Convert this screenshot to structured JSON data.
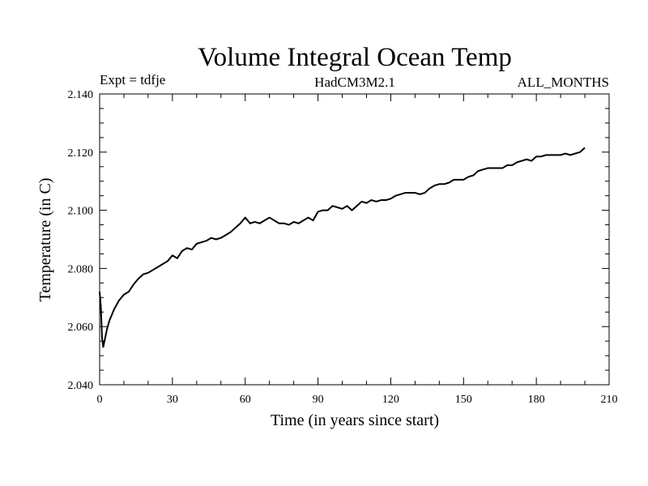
{
  "chart_data": {
    "type": "line",
    "title": "Volume Integral Ocean Temp",
    "subtitle_left": "Expt = tdfje",
    "subtitle_center": "HadCM3M2.1",
    "subtitle_right": "ALL_MONTHS",
    "xlabel": "Time (in years since start)",
    "ylabel": "Temperature (in C)",
    "xlim": [
      0,
      210
    ],
    "ylim": [
      2.04,
      2.14
    ],
    "xticks": [
      0,
      30,
      60,
      90,
      120,
      150,
      180,
      210
    ],
    "yticks": [
      2.04,
      2.06,
      2.08,
      2.1,
      2.12,
      2.14
    ],
    "xtick_labels": [
      "0",
      "30",
      "60",
      "90",
      "120",
      "150",
      "180",
      "210"
    ],
    "ytick_labels": [
      "2.040",
      "2.060",
      "2.080",
      "2.100",
      "2.120",
      "2.140"
    ],
    "grid": false,
    "line_color": "#000000",
    "series": [
      {
        "x": [
          0,
          0.5,
          1,
          1.5,
          2,
          3,
          4,
          5,
          6,
          8,
          10,
          12,
          14,
          16,
          18,
          20,
          22,
          24,
          26,
          28,
          30,
          32,
          34,
          36,
          38,
          40,
          42,
          44,
          46,
          48,
          50,
          52,
          54,
          56,
          58,
          60,
          62,
          64,
          66,
          68,
          70,
          72,
          74,
          76,
          78,
          80,
          82,
          84,
          86,
          88,
          90,
          92,
          94,
          96,
          98,
          100,
          102,
          104,
          106,
          108,
          110,
          112,
          114,
          116,
          118,
          120,
          122,
          124,
          126,
          128,
          130,
          132,
          134,
          136,
          138,
          140,
          142,
          144,
          146,
          148,
          150,
          152,
          154,
          156,
          158,
          160,
          162,
          164,
          166,
          168,
          170,
          172,
          174,
          176,
          178,
          180,
          182,
          184,
          186,
          188,
          190,
          192,
          194,
          196,
          198,
          200
        ],
        "y": [
          2.072,
          2.067,
          2.056,
          2.053,
          2.055,
          2.059,
          2.062,
          2.064,
          2.066,
          2.069,
          2.071,
          2.072,
          2.0745,
          2.0765,
          2.078,
          2.0785,
          2.0795,
          2.0805,
          2.0815,
          2.0825,
          2.0845,
          2.0835,
          2.086,
          2.087,
          2.0865,
          2.0885,
          2.089,
          2.0895,
          2.0905,
          2.09,
          2.0905,
          2.0915,
          2.0925,
          2.094,
          2.0955,
          2.0975,
          2.0955,
          2.096,
          2.0955,
          2.0965,
          2.0975,
          2.0965,
          2.0955,
          2.0955,
          2.095,
          2.096,
          2.0955,
          2.0965,
          2.0975,
          2.0965,
          2.0995,
          2.1,
          2.1,
          2.1015,
          2.101,
          2.1005,
          2.1015,
          2.1,
          2.1015,
          2.103,
          2.1025,
          2.1035,
          2.103,
          2.1035,
          2.1035,
          2.104,
          2.105,
          2.1055,
          2.106,
          2.106,
          2.106,
          2.1055,
          2.106,
          2.1075,
          2.1085,
          2.109,
          2.109,
          2.1095,
          2.1105,
          2.1105,
          2.1105,
          2.1115,
          2.112,
          2.1135,
          2.114,
          2.1145,
          2.1145,
          2.1145,
          2.1145,
          2.1155,
          2.1155,
          2.1165,
          2.117,
          2.1175,
          2.117,
          2.1185,
          2.1185,
          2.119,
          2.119,
          2.119,
          2.119,
          2.1195,
          2.119,
          2.1195,
          2.12,
          2.1215
        ]
      }
    ]
  }
}
